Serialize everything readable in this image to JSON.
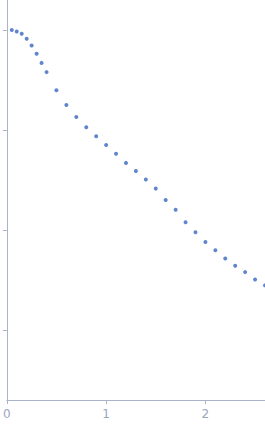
{
  "chart_data": {
    "type": "scatter",
    "x": [
      0.05,
      0.1,
      0.15,
      0.2,
      0.25,
      0.3,
      0.35,
      0.4,
      0.5,
      0.6,
      0.7,
      0.8,
      0.9,
      1.0,
      1.1,
      1.2,
      1.3,
      1.4,
      1.5,
      1.6,
      1.7,
      1.8,
      1.9,
      2.0,
      2.1,
      2.2,
      2.3,
      2.4,
      2.5,
      2.6
    ],
    "values": [
      1.0,
      0.97,
      0.92,
      0.82,
      0.7,
      0.58,
      0.47,
      0.38,
      0.25,
      0.178,
      0.135,
      0.107,
      0.087,
      0.071,
      0.058,
      0.047,
      0.039,
      0.032,
      0.026,
      0.02,
      0.016,
      0.012,
      0.0095,
      0.0076,
      0.0063,
      0.0052,
      0.0044,
      0.0038,
      0.0032,
      0.0028
    ],
    "color": "#3a66c0",
    "xlim": [
      0,
      2.6
    ],
    "xticks": [
      0,
      1,
      2
    ],
    "ylim": [
      0.0002,
      2
    ],
    "yticks": [
      0.001,
      0.01,
      0.1,
      1
    ],
    "log": "y",
    "grid": false,
    "tick_labels": "x",
    "marker": "circle"
  }
}
